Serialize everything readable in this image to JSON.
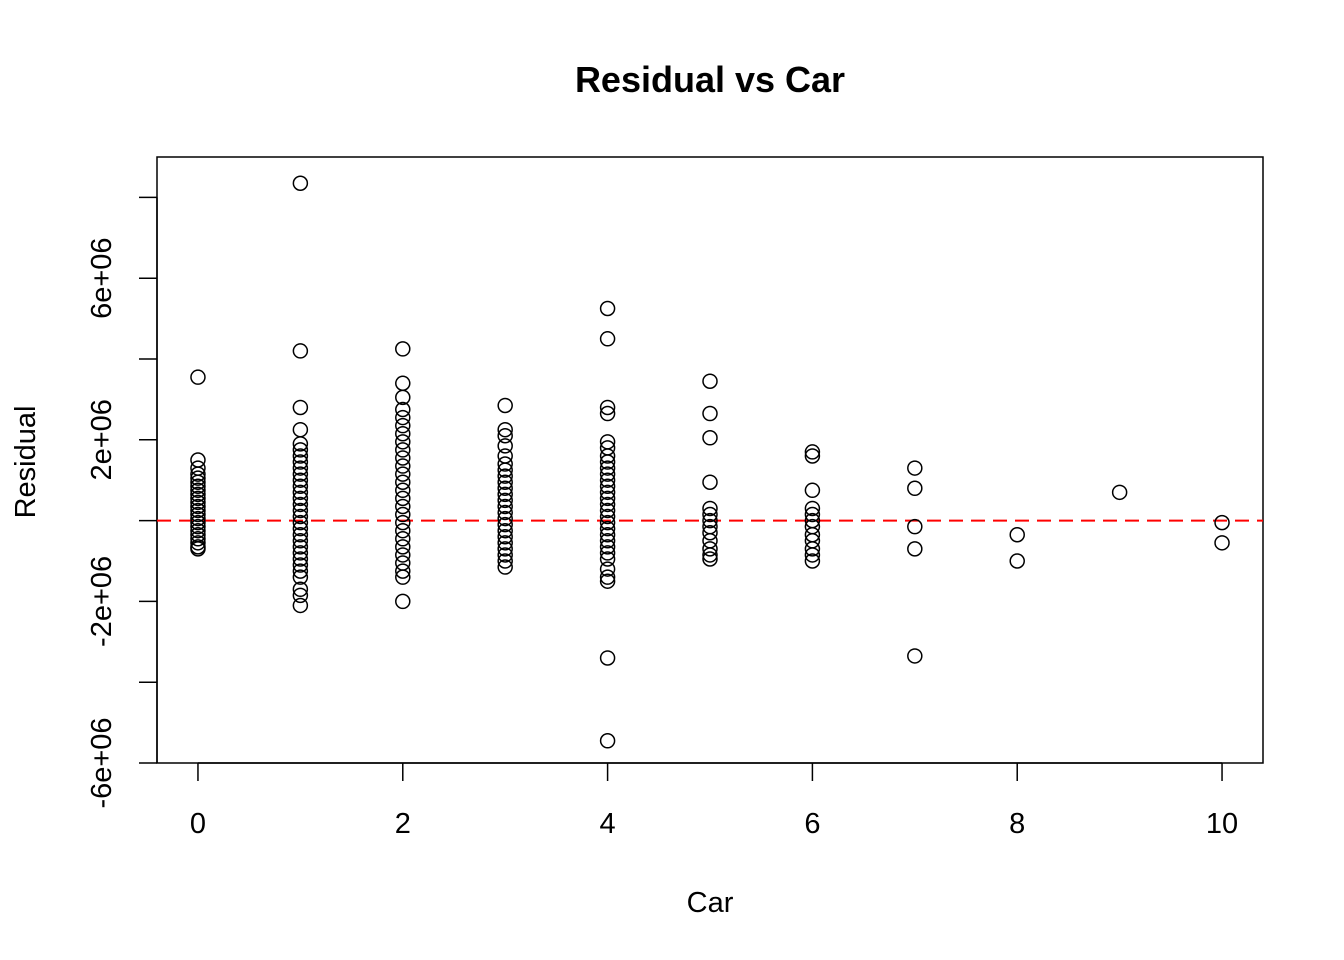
{
  "chart_data": {
    "type": "scatter",
    "title": "Residual vs Car",
    "xlabel": "Car",
    "ylabel": "Residual",
    "xlim": [
      -0.4,
      10.4
    ],
    "ylim": [
      -6000000,
      9000000
    ],
    "x_ticks": [
      0,
      2,
      4,
      6,
      8,
      10
    ],
    "x_tick_labels": [
      "0",
      "2",
      "4",
      "6",
      "8",
      "10"
    ],
    "y_ticks": [
      -6000000,
      -4000000,
      -2000000,
      0,
      2000000,
      4000000,
      6000000,
      8000000
    ],
    "y_tick_labels": [
      "-6e+06",
      "",
      "-2e+06",
      "",
      "2e+06",
      "",
      "6e+06",
      ""
    ],
    "grid": false,
    "reference_line": {
      "y": 0,
      "style": "dashed",
      "color": "#ff0000"
    },
    "colors": {
      "marker_stroke": "#000000",
      "reference_line": "#ff0000",
      "axes": "#000000"
    },
    "series": [
      {
        "points": [
          [
            0,
            3550000
          ],
          [
            0,
            1500000
          ],
          [
            0,
            1300000
          ],
          [
            0,
            1150000
          ],
          [
            0,
            1050000
          ],
          [
            0,
            950000
          ],
          [
            0,
            850000
          ],
          [
            0,
            750000
          ],
          [
            0,
            650000
          ],
          [
            0,
            550000
          ],
          [
            0,
            450000
          ],
          [
            0,
            350000
          ],
          [
            0,
            250000
          ],
          [
            0,
            150000
          ],
          [
            0,
            50000
          ],
          [
            0,
            -50000
          ],
          [
            0,
            -150000
          ],
          [
            0,
            -250000
          ],
          [
            0,
            -350000
          ],
          [
            0,
            -450000
          ],
          [
            0,
            -550000
          ],
          [
            0,
            -650000
          ],
          [
            0,
            -700000
          ],
          [
            1,
            8350000
          ],
          [
            1,
            4200000
          ],
          [
            1,
            2800000
          ],
          [
            1,
            2250000
          ],
          [
            1,
            1900000
          ],
          [
            1,
            1750000
          ],
          [
            1,
            1600000
          ],
          [
            1,
            1450000
          ],
          [
            1,
            1300000
          ],
          [
            1,
            1150000
          ],
          [
            1,
            1000000
          ],
          [
            1,
            850000
          ],
          [
            1,
            700000
          ],
          [
            1,
            550000
          ],
          [
            1,
            400000
          ],
          [
            1,
            250000
          ],
          [
            1,
            100000
          ],
          [
            1,
            -50000
          ],
          [
            1,
            -200000
          ],
          [
            1,
            -350000
          ],
          [
            1,
            -500000
          ],
          [
            1,
            -650000
          ],
          [
            1,
            -800000
          ],
          [
            1,
            -950000
          ],
          [
            1,
            -1100000
          ],
          [
            1,
            -1250000
          ],
          [
            1,
            -1400000
          ],
          [
            1,
            -1700000
          ],
          [
            1,
            -1850000
          ],
          [
            1,
            -2100000
          ],
          [
            2,
            4250000
          ],
          [
            2,
            3400000
          ],
          [
            2,
            3050000
          ],
          [
            2,
            2750000
          ],
          [
            2,
            2550000
          ],
          [
            2,
            2350000
          ],
          [
            2,
            2150000
          ],
          [
            2,
            1950000
          ],
          [
            2,
            1750000
          ],
          [
            2,
            1550000
          ],
          [
            2,
            1350000
          ],
          [
            2,
            1150000
          ],
          [
            2,
            950000
          ],
          [
            2,
            750000
          ],
          [
            2,
            550000
          ],
          [
            2,
            350000
          ],
          [
            2,
            150000
          ],
          [
            2,
            -50000
          ],
          [
            2,
            -250000
          ],
          [
            2,
            -450000
          ],
          [
            2,
            -650000
          ],
          [
            2,
            -850000
          ],
          [
            2,
            -1050000
          ],
          [
            2,
            -1250000
          ],
          [
            2,
            -1400000
          ],
          [
            2,
            -2000000
          ],
          [
            3,
            2850000
          ],
          [
            3,
            2250000
          ],
          [
            3,
            2100000
          ],
          [
            3,
            1850000
          ],
          [
            3,
            1600000
          ],
          [
            3,
            1400000
          ],
          [
            3,
            1250000
          ],
          [
            3,
            1100000
          ],
          [
            3,
            950000
          ],
          [
            3,
            800000
          ],
          [
            3,
            650000
          ],
          [
            3,
            500000
          ],
          [
            3,
            350000
          ],
          [
            3,
            200000
          ],
          [
            3,
            50000
          ],
          [
            3,
            -100000
          ],
          [
            3,
            -250000
          ],
          [
            3,
            -400000
          ],
          [
            3,
            -550000
          ],
          [
            3,
            -700000
          ],
          [
            3,
            -850000
          ],
          [
            3,
            -1000000
          ],
          [
            3,
            -1150000
          ],
          [
            4,
            5250000
          ],
          [
            4,
            4500000
          ],
          [
            4,
            2800000
          ],
          [
            4,
            2650000
          ],
          [
            4,
            1950000
          ],
          [
            4,
            1800000
          ],
          [
            4,
            1600000
          ],
          [
            4,
            1450000
          ],
          [
            4,
            1300000
          ],
          [
            4,
            1150000
          ],
          [
            4,
            1000000
          ],
          [
            4,
            850000
          ],
          [
            4,
            700000
          ],
          [
            4,
            550000
          ],
          [
            4,
            400000
          ],
          [
            4,
            250000
          ],
          [
            4,
            100000
          ],
          [
            4,
            -50000
          ],
          [
            4,
            -200000
          ],
          [
            4,
            -350000
          ],
          [
            4,
            -500000
          ],
          [
            4,
            -650000
          ],
          [
            4,
            -800000
          ],
          [
            4,
            -950000
          ],
          [
            4,
            -1200000
          ],
          [
            4,
            -1400000
          ],
          [
            4,
            -1500000
          ],
          [
            4,
            -3400000
          ],
          [
            4,
            -5450000
          ],
          [
            5,
            3450000
          ],
          [
            5,
            2650000
          ],
          [
            5,
            2050000
          ],
          [
            5,
            950000
          ],
          [
            5,
            300000
          ],
          [
            5,
            150000
          ],
          [
            5,
            0
          ],
          [
            5,
            -150000
          ],
          [
            5,
            -300000
          ],
          [
            5,
            -500000
          ],
          [
            5,
            -700000
          ],
          [
            5,
            -850000
          ],
          [
            5,
            -950000
          ],
          [
            6,
            1700000
          ],
          [
            6,
            1600000
          ],
          [
            6,
            750000
          ],
          [
            6,
            300000
          ],
          [
            6,
            150000
          ],
          [
            6,
            0
          ],
          [
            6,
            -150000
          ],
          [
            6,
            -350000
          ],
          [
            6,
            -500000
          ],
          [
            6,
            -700000
          ],
          [
            6,
            -850000
          ],
          [
            6,
            -1000000
          ],
          [
            7,
            1300000
          ],
          [
            7,
            800000
          ],
          [
            7,
            -150000
          ],
          [
            7,
            -700000
          ],
          [
            7,
            -3350000
          ],
          [
            8,
            -350000
          ],
          [
            8,
            -1000000
          ],
          [
            9,
            700000
          ],
          [
            10,
            -50000
          ],
          [
            10,
            -550000
          ]
        ]
      }
    ]
  }
}
